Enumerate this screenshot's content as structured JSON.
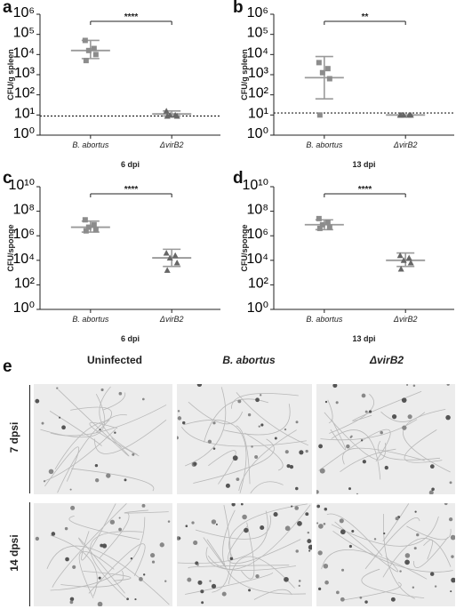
{
  "panel_labels": [
    "a",
    "b",
    "c",
    "d",
    "e"
  ],
  "chart_data": [
    {
      "type": "scatter",
      "panel": "a",
      "ylabel": "CFU/g spleen",
      "xlabel": "6 dpi",
      "categories": [
        "B. abortus",
        "ΔvirB2"
      ],
      "yscale": "log",
      "ylim_exp": [
        0,
        6
      ],
      "ytick_labels": [
        "10⁰",
        "10¹",
        "10²",
        "10³",
        "10⁴",
        "10⁵",
        "10⁶"
      ],
      "detection_limit_exp": 0.95,
      "significance": "****",
      "series": [
        {
          "marker": "square",
          "points_exp": [
            4.7,
            4.3,
            4.2,
            4.0,
            3.7
          ],
          "mean_exp": 4.2,
          "err_exp": [
            3.8,
            4.7
          ]
        },
        {
          "marker": "triangle",
          "points_exp": [
            1.2,
            1.0,
            1.0,
            0.95,
            0.95
          ],
          "mean_exp": 1.05,
          "err_exp": [
            0.95,
            1.2
          ]
        }
      ]
    },
    {
      "type": "scatter",
      "panel": "b",
      "ylabel": "CFU/g spleen",
      "xlabel": "13 dpi",
      "categories": [
        "B. abortus",
        "ΔvirB2"
      ],
      "yscale": "log",
      "ylim_exp": [
        0,
        6
      ],
      "ytick_labels": [
        "10⁰",
        "10¹",
        "10²",
        "10³",
        "10⁴",
        "10⁵",
        "10⁶"
      ],
      "detection_limit_exp": 1.1,
      "significance": "**",
      "series": [
        {
          "marker": "square",
          "points_exp": [
            3.6,
            3.3,
            3.1,
            2.8,
            1.0
          ],
          "mean_exp": 2.85,
          "err_exp": [
            1.8,
            3.9
          ]
        },
        {
          "marker": "triangle",
          "points_exp": [
            1.0,
            1.0,
            1.0,
            1.0,
            1.0
          ],
          "mean_exp": 1.0,
          "err_exp": [
            1.0,
            1.0
          ]
        }
      ]
    },
    {
      "type": "scatter",
      "panel": "c",
      "ylabel": "CFU/sponge",
      "xlabel": "6 dpi",
      "categories": [
        "B. abortus",
        "ΔvirB2"
      ],
      "yscale": "log",
      "ylim_exp": [
        0,
        10
      ],
      "ytick_labels": [
        "10⁰",
        "10²",
        "10⁴",
        "10⁶",
        "10⁸",
        "10¹⁰"
      ],
      "significance": "****",
      "series": [
        {
          "marker": "square",
          "points_exp": [
            7.3,
            6.9,
            6.7,
            6.5,
            6.4
          ],
          "mean_exp": 6.7,
          "err_exp": [
            6.3,
            7.2
          ]
        },
        {
          "marker": "triangle",
          "points_exp": [
            4.6,
            4.4,
            4.2,
            3.8,
            3.2
          ],
          "mean_exp": 4.2,
          "err_exp": [
            3.5,
            4.9
          ]
        }
      ]
    },
    {
      "type": "scatter",
      "panel": "d",
      "ylabel": "CFU/sponge",
      "xlabel": "13 dpi",
      "categories": [
        "B. abortus",
        "ΔvirB2"
      ],
      "yscale": "log",
      "ylim_exp": [
        0,
        10
      ],
      "ytick_labels": [
        "10⁰",
        "10²",
        "10⁴",
        "10⁶",
        "10⁸",
        "10¹⁰"
      ],
      "significance": "****",
      "series": [
        {
          "marker": "square",
          "points_exp": [
            7.4,
            7.1,
            6.9,
            6.7,
            6.6
          ],
          "mean_exp": 6.9,
          "err_exp": [
            6.5,
            7.3
          ]
        },
        {
          "marker": "triangle",
          "points_exp": [
            4.4,
            4.2,
            4.0,
            3.8,
            3.3
          ],
          "mean_exp": 4.0,
          "err_exp": [
            3.5,
            4.6
          ]
        }
      ]
    }
  ],
  "micrographs": {
    "columns": [
      "Uninfected",
      "B. abortus",
      "ΔvirB2"
    ],
    "rows": [
      "7 dpsi",
      "14 dpsi"
    ]
  },
  "colors": {
    "marker": "#8c8c8c",
    "error": "#9a9a9a",
    "axis": "#222222"
  }
}
